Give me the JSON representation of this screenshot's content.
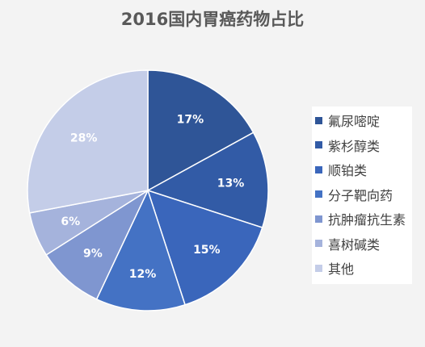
{
  "chart_data": {
    "type": "pie",
    "title": "2016国内胃癌药物占比",
    "categories": [
      "氟尿嘧啶",
      "紫杉醇类",
      "顺铂类",
      "分子靶向药",
      "抗肿瘤抗生素",
      "喜树碱类",
      "其他"
    ],
    "values": [
      17,
      13,
      15,
      12,
      9,
      6,
      28
    ],
    "data_labels": [
      "17%",
      "13%",
      "15%",
      "12%",
      "9%",
      "6%",
      "28%"
    ],
    "colors": [
      "#2f5597",
      "#325ba6",
      "#3a66bb",
      "#4472c4",
      "#7f96d0",
      "#a5b3dc",
      "#c4cde8"
    ],
    "start_angle": "12 o'clock",
    "direction": "clockwise",
    "legend": "right"
  }
}
